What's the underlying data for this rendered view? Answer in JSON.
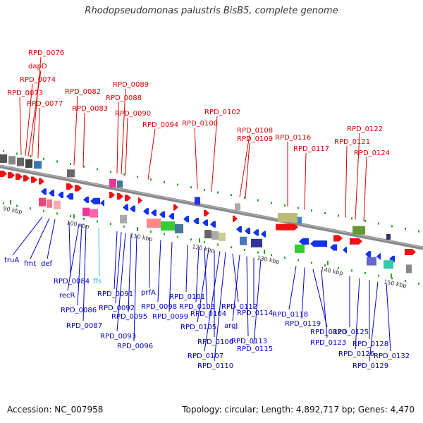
{
  "title": "Rhodopseudomonas palustris BisB5, complete genome",
  "footer": {
    "accession": "Accession: NC_007958",
    "summary": "Topology: circular; Length: 4,892,717 bp; Genes: 4,470"
  },
  "colors": {
    "forward_label": "#dd0000",
    "reverse_label": "#0000cc",
    "rna_label": "#33bbdd",
    "axis": "#888888",
    "tick": "#22aa22",
    "forward_gene": "#ee1111",
    "reverse_gene": "#1133ee"
  },
  "scale_labels": [
    "90 kbp",
    "100 kbp",
    "110 kbp",
    "120 kbp",
    "130 kbp",
    "140 kbp",
    "150 kbp"
  ],
  "forward_labels": [
    "RPD_0076",
    "dapD",
    "RPD_0074",
    "RPD_0073",
    "RPD_0077",
    "RPD_0082",
    "RPD_0083",
    "RPD_0089",
    "RPD_0088",
    "RPD_0090",
    "RPD_0094",
    "RPD_0102",
    "RPD_0100",
    "RPD_0108",
    "RPD_0109",
    "RPD_0116",
    "RPD_0117",
    "RPD_0122",
    "RPD_0121",
    "RPD_0124"
  ],
  "reverse_labels": [
    "truA",
    "fmt",
    "def",
    "RPD_0084",
    "recR",
    "RPD_0086",
    "RPD_0087",
    "ffs",
    "RPD_0091",
    "RPD_0092",
    "RPD_0093",
    "RPD_0095",
    "RPD_0096",
    "prfA",
    "RPD_0098",
    "RPD_0099",
    "RPD_0101",
    "RPD_0103",
    "RPD_0104",
    "RPD_0105",
    "RPD_0106",
    "RPD_0107",
    "RPD_0110",
    "RPD_0112",
    "argJ",
    "RPD_0113",
    "RPD_0114",
    "RPD_0115",
    "RPD_0118",
    "RPD_0119",
    "RPD_0120",
    "RPD_0123",
    "RPD_0125",
    "RPD_0126",
    "RPD_0128",
    "RPD_0129",
    "RPD_0132"
  ]
}
